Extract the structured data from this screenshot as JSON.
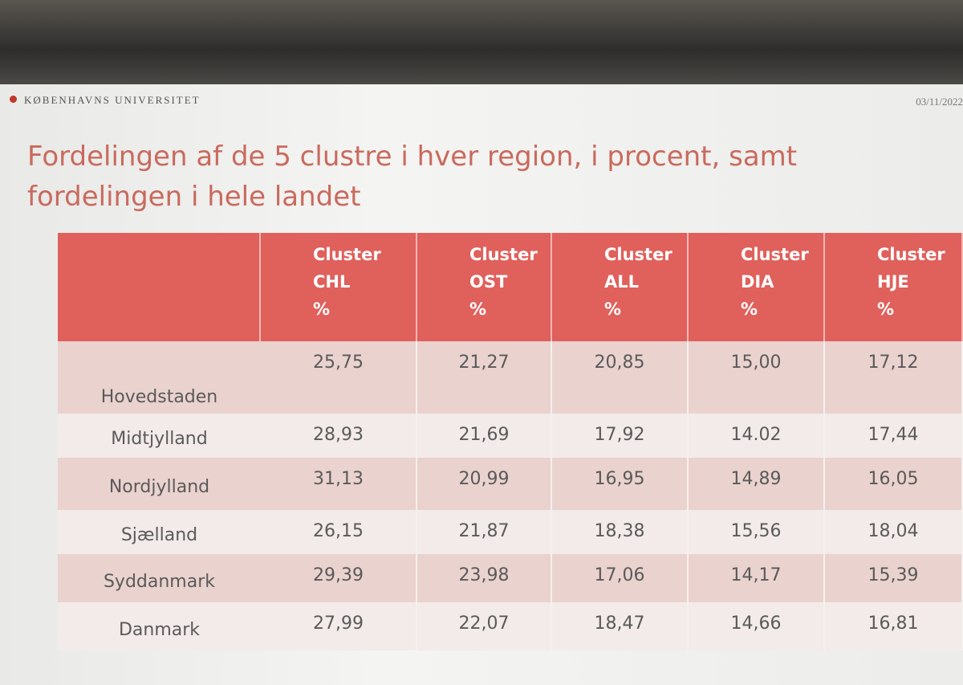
{
  "header": {
    "logo": "KØBENHAVNS UNIVERSITET",
    "date": "03/11/2022"
  },
  "title": {
    "line1": "Fordelingen af de 5 clustre i hver region, i procent, samt",
    "line2": "fordelingen i hele landet"
  },
  "table": {
    "columns": [
      [
        "Cluster",
        "CHL",
        "%"
      ],
      [
        "Cluster",
        "OST",
        "%"
      ],
      [
        "Cluster",
        "ALL",
        "%"
      ],
      [
        "Cluster",
        "DIA",
        "%"
      ],
      [
        "Cluster",
        "HJE",
        "%"
      ]
    ],
    "rows": [
      [
        "Hovedstaden",
        "25,75",
        "21,27",
        "20,85",
        "15,00",
        "17,12"
      ],
      [
        "Midtjylland",
        "28,93",
        "21,69",
        "17,92",
        "14.02",
        "17,44"
      ],
      [
        "Nordjylland",
        "31,13",
        "20,99",
        "16,95",
        "14,89",
        "16,05"
      ],
      [
        "Sjælland",
        "26,15",
        "21,87",
        "18,38",
        "15,56",
        "18,04"
      ],
      [
        "Syddanmark",
        "29,39",
        "23,98",
        "17,06",
        "14,17",
        "15,39"
      ],
      [
        "Danmark",
        "27,99",
        "22,07",
        "18,47",
        "14,66",
        "16,81"
      ]
    ]
  }
}
